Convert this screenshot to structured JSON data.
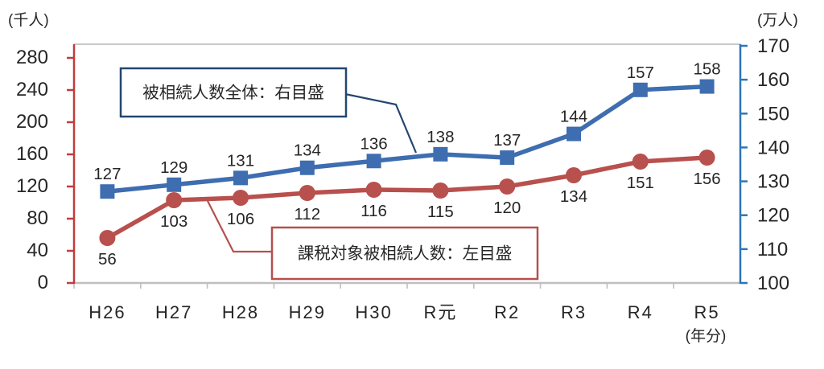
{
  "chart_data": {
    "type": "line",
    "categories": [
      "H26",
      "H27",
      "H28",
      "H29",
      "H30",
      "R元",
      "R2",
      "R3",
      "R4",
      "R5"
    ],
    "series": [
      {
        "id": "total",
        "name": "被相続人数全体：右目盛",
        "axis": "right",
        "marker": "square",
        "color": "#3E6DB0",
        "value_labels": "above",
        "values": [
          127,
          129,
          131,
          134,
          136,
          138,
          137,
          144,
          157,
          158
        ]
      },
      {
        "id": "taxable",
        "name": "課税対象被相続人数：左目盛",
        "axis": "left",
        "marker": "circle",
        "color": "#B8504D",
        "value_labels": "below",
        "values": [
          56,
          103,
          106,
          112,
          116,
          115,
          120,
          134,
          151,
          156
        ]
      }
    ],
    "left_axis": {
      "label": "(千人)",
      "min": 0,
      "max": 280,
      "step": 40,
      "ticks": [
        0,
        40,
        80,
        120,
        160,
        200,
        240,
        280
      ]
    },
    "right_axis": {
      "label": "(万人)",
      "min": 100,
      "max": 170,
      "step": 10,
      "ticks": [
        100,
        110,
        120,
        130,
        140,
        150,
        160,
        170
      ]
    },
    "x_axis": {
      "unit_label": "(年分)"
    },
    "grid": false,
    "legend_position": "none"
  },
  "callouts": {
    "total": {
      "text": "被相続人数全体：右目盛"
    },
    "taxable": {
      "text": "課税対象被相続人数：左目盛"
    }
  },
  "colors": {
    "series_total_blue": "#3E6DB0",
    "series_taxable_red": "#B8504D",
    "left_axis_red": "#C03C3C",
    "right_axis_blue": "#2E75B8",
    "callout_total_border": "#24466F",
    "callout_taxable_border": "#B5504E",
    "grid_gray": "#BFBFBF",
    "text": "#262626"
  }
}
